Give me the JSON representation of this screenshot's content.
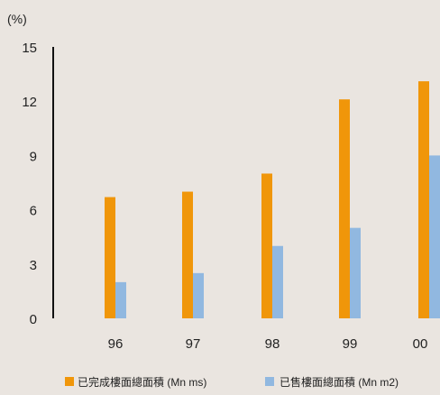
{
  "chart_data": {
    "type": "bar",
    "unit_label": "(%)",
    "categories": [
      "96",
      "97",
      "98",
      "99",
      "00"
    ],
    "series": [
      {
        "name": "已完成樓面總面積 (Mn ms)",
        "color": "#f0960a",
        "values": [
          6.7,
          7.0,
          8.0,
          12.1,
          13.1
        ]
      },
      {
        "name": "已售樓面總面積 (Mn m2)",
        "color": "#91b8e0",
        "values": [
          2.0,
          2.5,
          4.0,
          5.0,
          9.0
        ]
      }
    ],
    "ylim": [
      0,
      15
    ],
    "yticks": [
      0,
      3,
      6,
      9,
      12,
      15
    ],
    "grid": false,
    "legend_position": "bottom"
  }
}
